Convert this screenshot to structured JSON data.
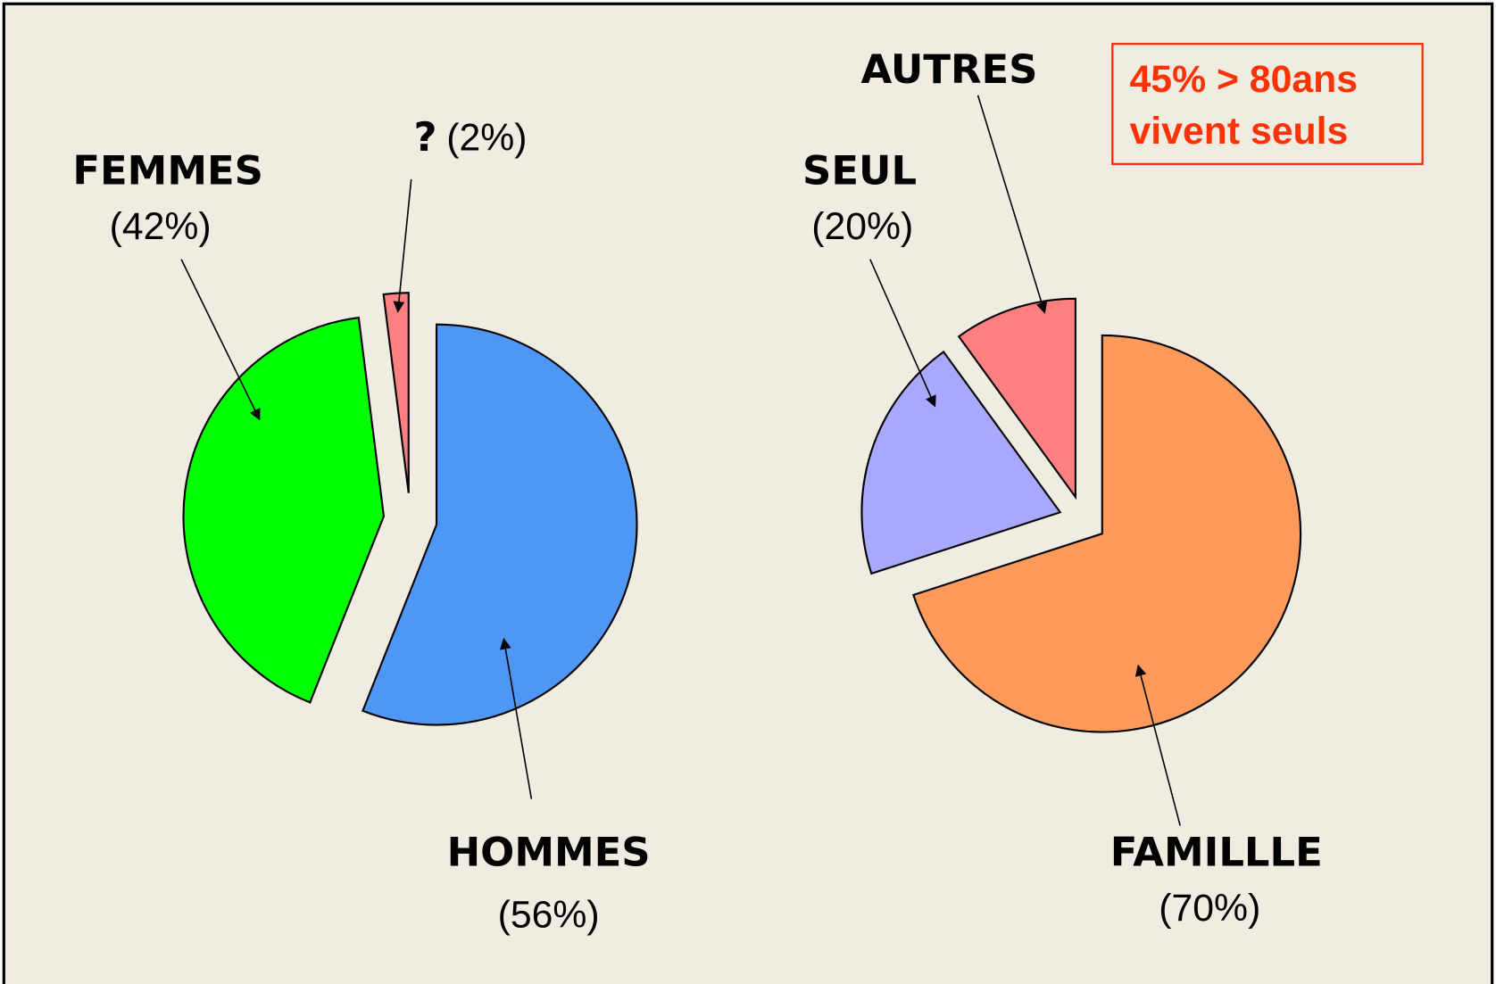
{
  "chart_data": [
    {
      "type": "pie",
      "categories": [
        "HOMMES",
        "FEMMES",
        "?"
      ],
      "values": [
        56,
        42,
        2
      ],
      "value_labels": [
        "(56%)",
        "(42%)",
        "(2%)"
      ],
      "colors": [
        "#4f97f5",
        "#00ff00",
        "#ff8080"
      ]
    },
    {
      "type": "pie",
      "categories": [
        "FAMILLLE",
        "SEUL",
        "AUTRES"
      ],
      "values": [
        70,
        20,
        10
      ],
      "value_labels": [
        "(70%)",
        "(20%)",
        null
      ],
      "colors": [
        "#ff9a5a",
        "#a8a8ff",
        "#ff8080"
      ],
      "annotation": [
        "45% > 80ans",
        "vivent seuls"
      ]
    }
  ]
}
